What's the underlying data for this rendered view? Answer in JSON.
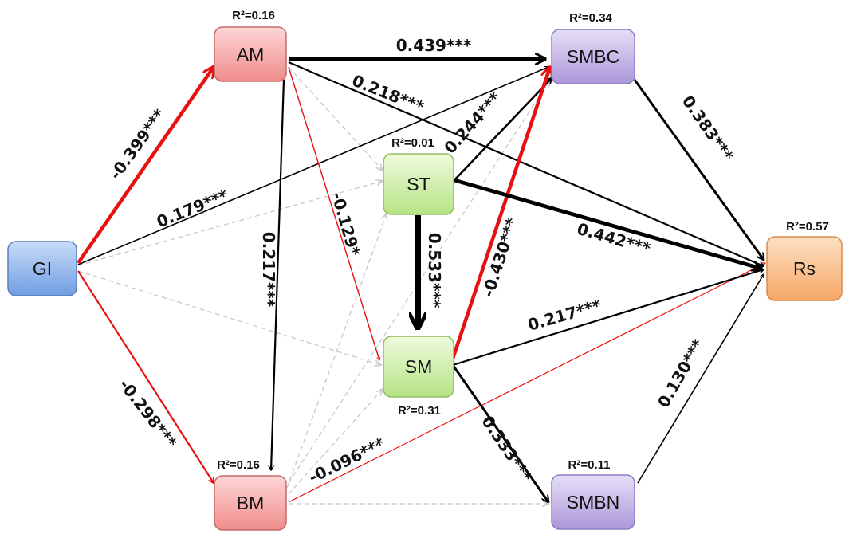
{
  "nodes": {
    "gi": {
      "label": "GI",
      "r2": ""
    },
    "am": {
      "label": "AM",
      "r2": "R²=0.16"
    },
    "bm": {
      "label": "BM",
      "r2": "R²=0.16"
    },
    "st": {
      "label": "ST",
      "r2": "R²=0.01"
    },
    "sm": {
      "label": "SM",
      "r2": "R²=0.31"
    },
    "smbc": {
      "label": "SMBC",
      "r2": "R²=0.34"
    },
    "smbn": {
      "label": "SMBN",
      "r2": "R²=0.11"
    },
    "rs": {
      "label": "Rs",
      "r2": "R²=0.57"
    }
  },
  "paths": [
    {
      "id": "gi-am",
      "from": "GI",
      "to": "AM",
      "coef": "-0.399***",
      "sign": "negative",
      "significant": true
    },
    {
      "id": "gi-bm",
      "from": "GI",
      "to": "BM",
      "coef": "-0.298***",
      "sign": "negative",
      "significant": true
    },
    {
      "id": "gi-smbc",
      "from": "GI",
      "to": "SMBC",
      "coef": "0.179***",
      "sign": "positive",
      "significant": true
    },
    {
      "id": "am-smbc",
      "from": "AM",
      "to": "SMBC",
      "coef": "0.439***",
      "sign": "positive",
      "significant": true
    },
    {
      "id": "am-rs",
      "from": "AM",
      "to": "Rs",
      "coef": "0.218***",
      "sign": "positive",
      "significant": true
    },
    {
      "id": "am-bm",
      "from": "AM",
      "to": "BM",
      "coef": "0.217***",
      "sign": "positive",
      "significant": true
    },
    {
      "id": "am-sm",
      "from": "AM",
      "to": "SM",
      "coef": "-0.129*",
      "sign": "negative",
      "significant": true
    },
    {
      "id": "st-smbc",
      "from": "ST",
      "to": "SMBC",
      "coef": "0.244***",
      "sign": "positive",
      "significant": true
    },
    {
      "id": "st-rs",
      "from": "ST",
      "to": "Rs",
      "coef": "0.442***",
      "sign": "positive",
      "significant": true
    },
    {
      "id": "st-sm",
      "from": "ST",
      "to": "SM",
      "coef": "0.533***",
      "sign": "positive",
      "significant": true
    },
    {
      "id": "sm-smbc",
      "from": "SM",
      "to": "SMBC",
      "coef": "-0.430***",
      "sign": "negative",
      "significant": true
    },
    {
      "id": "sm-rs",
      "from": "SM",
      "to": "Rs",
      "coef": "0.217***",
      "sign": "positive",
      "significant": true
    },
    {
      "id": "sm-smbn",
      "from": "SM",
      "to": "SMBN",
      "coef": "0.333***",
      "sign": "positive",
      "significant": true
    },
    {
      "id": "bm-rs",
      "from": "BM",
      "to": "Rs",
      "coef": "-0.096***",
      "sign": "negative",
      "significant": true
    },
    {
      "id": "smbc-rs",
      "from": "SMBC",
      "to": "Rs",
      "coef": "0.383***",
      "sign": "positive",
      "significant": true
    },
    {
      "id": "smbn-rs",
      "from": "SMBN",
      "to": "Rs",
      "coef": "0.130***",
      "sign": "positive",
      "significant": true
    },
    {
      "id": "ns-gi-st",
      "from": "GI",
      "to": "ST",
      "coef": "",
      "sign": "nonsignificant",
      "significant": false
    },
    {
      "id": "ns-gi-sm",
      "from": "GI",
      "to": "SM",
      "coef": "",
      "sign": "nonsignificant",
      "significant": false
    },
    {
      "id": "ns-am-st",
      "from": "AM",
      "to": "ST",
      "coef": "",
      "sign": "nonsignificant",
      "significant": false
    },
    {
      "id": "ns-bm-st",
      "from": "BM",
      "to": "ST",
      "coef": "",
      "sign": "nonsignificant",
      "significant": false
    },
    {
      "id": "ns-bm-sm",
      "from": "BM",
      "to": "SM",
      "coef": "",
      "sign": "nonsignificant",
      "significant": false
    },
    {
      "id": "ns-bm-smbc",
      "from": "BM",
      "to": "SMBC",
      "coef": "",
      "sign": "nonsignificant",
      "significant": false
    },
    {
      "id": "ns-bm-smbn",
      "from": "BM",
      "to": "SMBN",
      "coef": "",
      "sign": "nonsignificant",
      "significant": false
    }
  ],
  "colors": {
    "positive": "#000000",
    "negative": "#e81010",
    "nonsignificant": "#c8c8c8",
    "gi_fill": "#7aa6e6",
    "am_fill": "#f29a9a",
    "bm_fill": "#f29a9a",
    "st_fill": "#c5ec9a",
    "sm_fill": "#c5ec9a",
    "smbc_fill": "#b7a6de",
    "smbn_fill": "#b7a6de",
    "rs_fill": "#f9b27a"
  }
}
